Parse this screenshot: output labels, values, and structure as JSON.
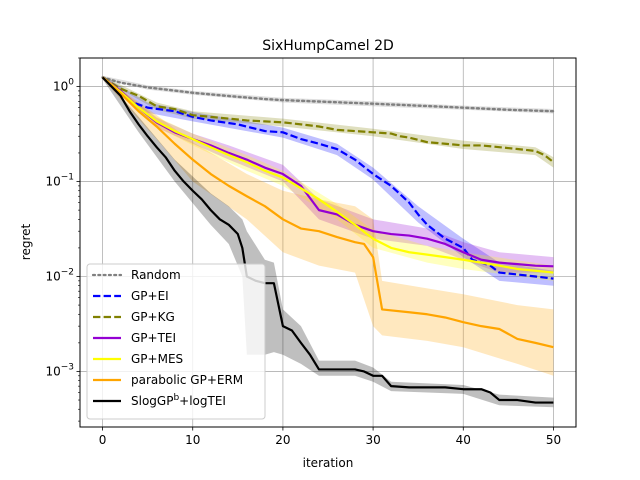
{
  "chart_data": {
    "type": "line",
    "title": "SixHumpCamel 2D",
    "xlabel": "iteration",
    "ylabel": "regret",
    "xlim": [
      -2.5,
      52.5
    ],
    "ylim": [
      0.00026,
      2.0
    ],
    "yscale": "log",
    "grid": true,
    "legend_position": "lower left",
    "x_ticks": [
      0,
      10,
      20,
      30,
      40,
      50
    ],
    "x_tick_labels": [
      "0",
      "10",
      "20",
      "30",
      "40",
      "50"
    ],
    "y_ticks": [
      1,
      0.1,
      0.01,
      0.001
    ],
    "y_tick_labels": [
      {
        "base": "10",
        "exp": "0"
      },
      {
        "base": "10",
        "exp": "−1"
      },
      {
        "base": "10",
        "exp": "−2"
      },
      {
        "base": "10",
        "exp": "−3"
      }
    ],
    "series": [
      {
        "name": "Random",
        "color": "#808080",
        "dash": "dotted",
        "band_color": "#808080",
        "points": [
          [
            0,
            1.25
          ],
          [
            2,
            1.1
          ],
          [
            5,
            0.98
          ],
          [
            10,
            0.86
          ],
          [
            15,
            0.78
          ],
          [
            18,
            0.74
          ],
          [
            20,
            0.72
          ],
          [
            25,
            0.69
          ],
          [
            30,
            0.66
          ],
          [
            35,
            0.63
          ],
          [
            40,
            0.6
          ],
          [
            45,
            0.57
          ],
          [
            50,
            0.55
          ]
        ],
        "band": [
          [
            0,
            1.3,
            1.2
          ],
          [
            5,
            1.03,
            0.93
          ],
          [
            10,
            0.9,
            0.82
          ],
          [
            20,
            0.76,
            0.68
          ],
          [
            30,
            0.7,
            0.62
          ],
          [
            40,
            0.63,
            0.57
          ],
          [
            50,
            0.58,
            0.52
          ]
        ]
      },
      {
        "name": "GP+EI",
        "color": "#0000ff",
        "dash": "dashed",
        "band_color": "#0000ff",
        "points": [
          [
            0,
            1.25
          ],
          [
            2,
            0.9
          ],
          [
            3,
            0.7
          ],
          [
            5,
            0.6
          ],
          [
            8,
            0.55
          ],
          [
            10,
            0.48
          ],
          [
            12,
            0.44
          ],
          [
            15,
            0.4
          ],
          [
            18,
            0.34
          ],
          [
            20,
            0.33
          ],
          [
            22,
            0.28
          ],
          [
            24,
            0.25
          ],
          [
            26,
            0.22
          ],
          [
            28,
            0.17
          ],
          [
            30,
            0.12
          ],
          [
            32,
            0.09
          ],
          [
            34,
            0.06
          ],
          [
            35,
            0.045
          ],
          [
            36,
            0.035
          ],
          [
            38,
            0.025
          ],
          [
            40,
            0.02
          ],
          [
            41,
            0.015
          ],
          [
            42,
            0.014
          ],
          [
            43,
            0.013
          ],
          [
            44,
            0.011
          ],
          [
            46,
            0.0105
          ],
          [
            48,
            0.01
          ],
          [
            50,
            0.0095
          ]
        ],
        "band": [
          [
            0,
            1.3,
            1.2
          ],
          [
            5,
            0.68,
            0.53
          ],
          [
            10,
            0.54,
            0.43
          ],
          [
            20,
            0.37,
            0.29
          ],
          [
            26,
            0.25,
            0.19
          ],
          [
            30,
            0.14,
            0.105
          ],
          [
            35,
            0.055,
            0.037
          ],
          [
            40,
            0.025,
            0.016
          ],
          [
            44,
            0.014,
            0.009
          ],
          [
            50,
            0.0115,
            0.008
          ]
        ]
      },
      {
        "name": "GP+KG",
        "color": "#808000",
        "dash": "dashed",
        "band_color": "#808000",
        "points": [
          [
            0,
            1.25
          ],
          [
            2,
            0.95
          ],
          [
            4,
            0.8
          ],
          [
            6,
            0.62
          ],
          [
            8,
            0.58
          ],
          [
            10,
            0.5
          ],
          [
            12,
            0.48
          ],
          [
            14,
            0.46
          ],
          [
            16,
            0.44
          ],
          [
            18,
            0.43
          ],
          [
            20,
            0.42
          ],
          [
            22,
            0.4
          ],
          [
            24,
            0.38
          ],
          [
            26,
            0.35
          ],
          [
            28,
            0.34
          ],
          [
            30,
            0.33
          ],
          [
            32,
            0.32
          ],
          [
            33,
            0.3
          ],
          [
            34,
            0.29
          ],
          [
            36,
            0.26
          ],
          [
            38,
            0.25
          ],
          [
            40,
            0.24
          ],
          [
            42,
            0.24
          ],
          [
            44,
            0.23
          ],
          [
            46,
            0.22
          ],
          [
            48,
            0.21
          ],
          [
            49,
            0.19
          ],
          [
            50,
            0.16
          ]
        ],
        "band": [
          [
            0,
            1.3,
            1.2
          ],
          [
            6,
            0.68,
            0.57
          ],
          [
            10,
            0.55,
            0.46
          ],
          [
            20,
            0.46,
            0.38
          ],
          [
            30,
            0.36,
            0.3
          ],
          [
            40,
            0.27,
            0.22
          ],
          [
            48,
            0.23,
            0.19
          ],
          [
            50,
            0.18,
            0.14
          ]
        ]
      },
      {
        "name": "GP+TEI",
        "color": "#9400d3",
        "dash": "solid",
        "band_color": "#9400d3",
        "points": [
          [
            0,
            1.25
          ],
          [
            2,
            0.9
          ],
          [
            4,
            0.6
          ],
          [
            6,
            0.42
          ],
          [
            8,
            0.33
          ],
          [
            10,
            0.28
          ],
          [
            12,
            0.24
          ],
          [
            14,
            0.2
          ],
          [
            16,
            0.17
          ],
          [
            18,
            0.14
          ],
          [
            20,
            0.12
          ],
          [
            22,
            0.09
          ],
          [
            24,
            0.05
          ],
          [
            26,
            0.045
          ],
          [
            28,
            0.035
          ],
          [
            30,
            0.03
          ],
          [
            32,
            0.028
          ],
          [
            34,
            0.027
          ],
          [
            36,
            0.025
          ],
          [
            38,
            0.022
          ],
          [
            40,
            0.018
          ],
          [
            42,
            0.015
          ],
          [
            44,
            0.014
          ],
          [
            46,
            0.0135
          ],
          [
            48,
            0.013
          ],
          [
            50,
            0.0128
          ]
        ],
        "band": [
          [
            0,
            1.3,
            1.2
          ],
          [
            6,
            0.47,
            0.37
          ],
          [
            10,
            0.32,
            0.25
          ],
          [
            14,
            0.24,
            0.17
          ],
          [
            20,
            0.15,
            0.1
          ],
          [
            24,
            0.065,
            0.04
          ],
          [
            30,
            0.04,
            0.025
          ],
          [
            36,
            0.032,
            0.021
          ],
          [
            40,
            0.023,
            0.015
          ],
          [
            44,
            0.018,
            0.011
          ],
          [
            50,
            0.016,
            0.011
          ]
        ]
      },
      {
        "name": "GP+MES",
        "color": "#ffff00",
        "dash": "solid",
        "band_color": "#ffff00",
        "points": [
          [
            0,
            1.25
          ],
          [
            2,
            0.88
          ],
          [
            4,
            0.6
          ],
          [
            6,
            0.43
          ],
          [
            8,
            0.34
          ],
          [
            10,
            0.28
          ],
          [
            12,
            0.23
          ],
          [
            14,
            0.19
          ],
          [
            16,
            0.16
          ],
          [
            18,
            0.13
          ],
          [
            20,
            0.11
          ],
          [
            22,
            0.085
          ],
          [
            24,
            0.065
          ],
          [
            26,
            0.048
          ],
          [
            28,
            0.035
          ],
          [
            30,
            0.025
          ],
          [
            32,
            0.02
          ],
          [
            34,
            0.018
          ],
          [
            36,
            0.017
          ],
          [
            38,
            0.016
          ],
          [
            40,
            0.015
          ],
          [
            42,
            0.014
          ],
          [
            44,
            0.013
          ],
          [
            46,
            0.012
          ],
          [
            48,
            0.0115
          ],
          [
            50,
            0.011
          ]
        ],
        "band": [
          [
            0,
            1.3,
            1.2
          ],
          [
            6,
            0.48,
            0.38
          ],
          [
            10,
            0.32,
            0.24
          ],
          [
            16,
            0.19,
            0.13
          ],
          [
            20,
            0.13,
            0.09
          ],
          [
            26,
            0.058,
            0.04
          ],
          [
            30,
            0.031,
            0.02
          ],
          [
            36,
            0.021,
            0.014
          ],
          [
            40,
            0.018,
            0.012
          ],
          [
            50,
            0.013,
            0.009
          ]
        ]
      },
      {
        "name": "parabolic GP+ERM",
        "color": "#ffa500",
        "dash": "solid",
        "band_color": "#ffa500",
        "points": [
          [
            0,
            1.25
          ],
          [
            2,
            0.85
          ],
          [
            4,
            0.55
          ],
          [
            6,
            0.38
          ],
          [
            8,
            0.25
          ],
          [
            10,
            0.17
          ],
          [
            12,
            0.12
          ],
          [
            14,
            0.09
          ],
          [
            16,
            0.07
          ],
          [
            18,
            0.055
          ],
          [
            20,
            0.04
          ],
          [
            22,
            0.032
          ],
          [
            24,
            0.03
          ],
          [
            26,
            0.026
          ],
          [
            28,
            0.023
          ],
          [
            29,
            0.022
          ],
          [
            30,
            0.016
          ],
          [
            31,
            0.0045
          ],
          [
            34,
            0.0042
          ],
          [
            36,
            0.004
          ],
          [
            38,
            0.0037
          ],
          [
            40,
            0.0033
          ],
          [
            42,
            0.003
          ],
          [
            44,
            0.0028
          ],
          [
            46,
            0.0022
          ],
          [
            48,
            0.002
          ],
          [
            50,
            0.0018
          ]
        ],
        "band": [
          [
            0,
            1.3,
            1.2
          ],
          [
            6,
            0.5,
            0.28
          ],
          [
            10,
            0.26,
            0.1
          ],
          [
            16,
            0.12,
            0.04
          ],
          [
            20,
            0.08,
            0.018
          ],
          [
            24,
            0.065,
            0.013
          ],
          [
            28,
            0.055,
            0.011
          ],
          [
            30,
            0.04,
            0.003
          ],
          [
            31,
            0.009,
            0.0024
          ],
          [
            36,
            0.0075,
            0.0021
          ],
          [
            40,
            0.0065,
            0.0018
          ],
          [
            46,
            0.005,
            0.0012
          ],
          [
            50,
            0.0045,
            0.0009
          ]
        ]
      },
      {
        "name": "SlogGP$^b$+logTEI",
        "label_base": "SlogGP",
        "label_sup": "b",
        "label_rest": "+logTEI",
        "color": "#000000",
        "dash": "solid",
        "band_color": "#000000",
        "points": [
          [
            0,
            1.25
          ],
          [
            2,
            0.8
          ],
          [
            3,
            0.55
          ],
          [
            4,
            0.4
          ],
          [
            5,
            0.3
          ],
          [
            6,
            0.23
          ],
          [
            7,
            0.18
          ],
          [
            8,
            0.13
          ],
          [
            9,
            0.1
          ],
          [
            10,
            0.08
          ],
          [
            11,
            0.065
          ],
          [
            12,
            0.05
          ],
          [
            13,
            0.04
          ],
          [
            14,
            0.035
          ],
          [
            15,
            0.028
          ],
          [
            15.5,
            0.02
          ],
          [
            16,
            0.01
          ],
          [
            17,
            0.009
          ],
          [
            18,
            0.0085
          ],
          [
            19,
            0.0085
          ],
          [
            20,
            0.003
          ],
          [
            21,
            0.0027
          ],
          [
            22,
            0.002
          ],
          [
            23,
            0.0015
          ],
          [
            24,
            0.00105
          ],
          [
            26,
            0.00105
          ],
          [
            28,
            0.00105
          ],
          [
            29,
            0.001
          ],
          [
            30,
            0.0009
          ],
          [
            31,
            0.0009
          ],
          [
            32,
            0.0007
          ],
          [
            34,
            0.00068
          ],
          [
            36,
            0.00068
          ],
          [
            38,
            0.00068
          ],
          [
            40,
            0.00065
          ],
          [
            42,
            0.00065
          ],
          [
            43,
            0.0006
          ],
          [
            44,
            0.0005
          ],
          [
            46,
            0.0005
          ],
          [
            48,
            0.00047
          ],
          [
            50,
            0.00047
          ]
        ],
        "band": [
          [
            0,
            1.3,
            1.2
          ],
          [
            4,
            0.48,
            0.33
          ],
          [
            8,
            0.17,
            0.1
          ],
          [
            12,
            0.075,
            0.035
          ],
          [
            14,
            0.055,
            0.022
          ],
          [
            15.5,
            0.04,
            0.01
          ],
          [
            16,
            0.03,
            0.0015
          ],
          [
            18,
            0.015,
            0.0015
          ],
          [
            19,
            0.014,
            0.0016
          ],
          [
            20,
            0.0045,
            0.0015
          ],
          [
            22,
            0.003,
            0.0012
          ],
          [
            24,
            0.0013,
            0.0009
          ],
          [
            28,
            0.0013,
            0.0009
          ],
          [
            30,
            0.0011,
            0.00078
          ],
          [
            32,
            0.00078,
            0.00062
          ],
          [
            40,
            0.00072,
            0.00058
          ],
          [
            44,
            0.00057,
            0.00044
          ],
          [
            50,
            0.00053,
            0.00042
          ]
        ]
      }
    ]
  }
}
